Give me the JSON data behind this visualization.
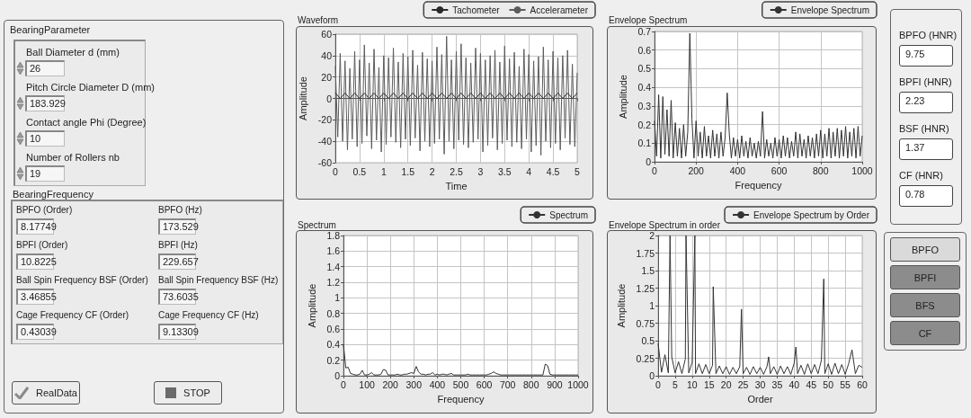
{
  "chart_data": [
    {
      "type": "other",
      "title": "BearingParameter",
      "annotations": [
        "Ball Diameter d (mm)",
        "26",
        "Pitch Circle Diameter D (mm)",
        "183.929",
        "Contact angle Phi (Degree)",
        "10",
        "Number of Rollers nb",
        "19"
      ]
    },
    {
      "type": "other",
      "title": "BearingFrequency",
      "annotations": [
        "BPFO (Order)",
        "8.17749",
        "BPFO (Hz)",
        "173.529",
        "BPFI (Order)",
        "10.8225",
        "BPFI (Hz)",
        "229.657",
        "Ball Spin Frequency BSF (Order)",
        "3.46855",
        "Ball Spin Frequency BSF (Hz)",
        "73.6035",
        "Cage Frequency CF (Order)",
        "0.43039",
        "Cage Frequency CF (Hz)",
        "9.13309"
      ]
    },
    {
      "type": "other",
      "annotations": [
        "RealData",
        "STOP"
      ]
    },
    {
      "type": "line",
      "title": "Waveform",
      "xlabel": "Time",
      "ylabel": "Amplitude",
      "xlim": [
        0,
        5
      ],
      "xticks": [
        0,
        0.5,
        1,
        1.5,
        2,
        2.5,
        3,
        3.5,
        4,
        4.5,
        5
      ],
      "ylim": [
        -60,
        60
      ],
      "yticks": [
        -60,
        -40,
        -20,
        0,
        20,
        40,
        60
      ],
      "grid": true,
      "legend": "top right",
      "series": [
        {
          "name": "Tachometer",
          "color": "#2a2a2a",
          "x": [
            0,
            0.1,
            0.2,
            0.3,
            0.4,
            0.5,
            0.6,
            0.7,
            0.8,
            0.9,
            1,
            1.1,
            1.2,
            1.3,
            1.4,
            1.5,
            1.6,
            1.7,
            1.8,
            1.9,
            2,
            2.1,
            2.2,
            2.3,
            2.4,
            2.5,
            2.6,
            2.7,
            2.8,
            2.9,
            3,
            3.1,
            3.2,
            3.3,
            3.4,
            3.5,
            3.6,
            3.7,
            3.8,
            3.9,
            4,
            4.1,
            4.2,
            4.3,
            4.4,
            4.5,
            4.6,
            4.7,
            4.8,
            4.9,
            5
          ],
          "values": [
            5,
            0,
            5,
            0,
            5,
            0,
            5,
            0,
            5,
            0,
            5,
            0,
            5,
            0,
            5,
            0,
            5,
            0,
            5,
            0,
            5,
            0,
            5,
            0,
            5,
            0,
            5,
            0,
            5,
            0,
            5,
            0,
            5,
            0,
            5,
            0,
            5,
            0,
            5,
            0,
            5,
            0,
            5,
            0,
            5,
            0,
            5,
            0,
            5,
            0,
            5
          ]
        },
        {
          "name": "Accelerameter",
          "color": "#5c5c5c",
          "x": [
            0,
            0.05,
            0.1,
            0.15,
            0.2,
            0.25,
            0.3,
            0.35,
            0.4,
            0.45,
            0.5,
            0.55,
            0.6,
            0.65,
            0.7,
            0.75,
            0.8,
            0.85,
            0.9,
            0.95,
            1,
            1.05,
            1.1,
            1.15,
            1.2,
            1.25,
            1.3,
            1.35,
            1.4,
            1.45,
            1.5,
            1.55,
            1.6,
            1.65,
            1.7,
            1.75,
            1.8,
            1.85,
            1.9,
            1.95,
            2,
            2.05,
            2.1,
            2.15,
            2.2,
            2.25,
            2.3,
            2.35,
            2.4,
            2.45,
            2.5,
            2.55,
            2.6,
            2.65,
            2.7,
            2.75,
            2.8,
            2.85,
            2.9,
            2.95,
            3,
            3.05,
            3.1,
            3.15,
            3.2,
            3.25,
            3.3,
            3.35,
            3.4,
            3.45,
            3.5,
            3.55,
            3.6,
            3.65,
            3.7,
            3.75,
            3.8,
            3.85,
            3.9,
            3.95,
            4,
            4.05,
            4.1,
            4.15,
            4.2,
            4.25,
            4.3,
            4.35,
            4.4,
            4.45,
            4.5,
            4.55,
            4.6,
            4.65,
            4.7,
            4.75,
            4.8,
            4.85,
            4.9,
            4.95,
            5
          ],
          "values": [
            30,
            -36,
            42,
            -40,
            35,
            -48,
            28,
            -38,
            44,
            -45,
            36,
            -42,
            50,
            -35,
            33,
            -47,
            46,
            -39,
            29,
            -50,
            40,
            -43,
            38,
            -36,
            47,
            -41,
            34,
            -46,
            42,
            -38,
            39,
            -44,
            45,
            -37,
            31,
            -49,
            43,
            -40,
            37,
            -45,
            35,
            -42,
            48,
            -38,
            41,
            -52,
            58,
            -40,
            36,
            -47,
            44,
            -39,
            51,
            -43,
            38,
            -46,
            33,
            -41,
            47,
            -38,
            42,
            -50,
            36,
            -44,
            40,
            -37,
            45,
            -48,
            34,
            -42,
            49,
            -39,
            37,
            -45,
            43,
            -41,
            30,
            -47,
            46,
            -38,
            41,
            -50,
            35,
            -44,
            39,
            -53,
            48,
            -40,
            36,
            -46,
            44,
            -42,
            38,
            -48,
            40,
            -37,
            45,
            -43,
            32,
            -45,
            24
          ]
        }
      ]
    },
    {
      "type": "line",
      "title": "Envelope Spectrum",
      "xlabel": "Frequency",
      "ylabel": "Amplitude",
      "xlim": [
        0,
        1000
      ],
      "xticks": [
        0,
        200,
        400,
        600,
        800,
        1000
      ],
      "ylim": [
        0,
        0.7
      ],
      "yticks": [
        0,
        0.1,
        0.2,
        0.3,
        0.4,
        0.5,
        0.6,
        0.7
      ],
      "grid": true,
      "legend": "top right",
      "series": [
        {
          "name": "Envelope Spectrum",
          "color": "#333333",
          "x": [
            0,
            10,
            20,
            30,
            40,
            50,
            60,
            70,
            80,
            90,
            100,
            110,
            120,
            130,
            140,
            150,
            160,
            170,
            180,
            190,
            200,
            210,
            220,
            230,
            240,
            250,
            260,
            270,
            280,
            290,
            300,
            310,
            320,
            330,
            340,
            350,
            360,
            370,
            380,
            390,
            400,
            410,
            420,
            430,
            440,
            450,
            460,
            470,
            480,
            490,
            500,
            510,
            520,
            530,
            540,
            550,
            560,
            570,
            580,
            590,
            600,
            610,
            620,
            630,
            640,
            650,
            660,
            670,
            680,
            690,
            700,
            710,
            720,
            730,
            740,
            750,
            760,
            770,
            780,
            790,
            800,
            810,
            820,
            830,
            840,
            850,
            860,
            870,
            880,
            890,
            900,
            910,
            920,
            930,
            940,
            950,
            960,
            970,
            980,
            990,
            1000
          ],
          "values": [
            0.22,
            0.03,
            0.36,
            0.02,
            0.35,
            0.04,
            0.28,
            0.03,
            0.33,
            0.02,
            0.21,
            0.03,
            0.18,
            0.02,
            0.2,
            0.03,
            0.16,
            0.69,
            0.23,
            0.02,
            0.22,
            0.03,
            0.16,
            0.02,
            0.19,
            0.03,
            0.14,
            0.02,
            0.17,
            0.03,
            0.15,
            0.02,
            0.16,
            0.03,
            0.13,
            0.37,
            0.15,
            0.02,
            0.13,
            0.03,
            0.12,
            0.02,
            0.14,
            0.03,
            0.11,
            0.02,
            0.13,
            0.03,
            0.1,
            0.02,
            0.11,
            0.03,
            0.27,
            0.02,
            0.12,
            0.03,
            0.1,
            0.02,
            0.13,
            0.03,
            0.12,
            0.02,
            0.14,
            0.03,
            0.13,
            0.02,
            0.11,
            0.03,
            0.16,
            0.02,
            0.15,
            0.03,
            0.12,
            0.02,
            0.14,
            0.03,
            0.13,
            0.02,
            0.15,
            0.03,
            0.17,
            0.02,
            0.15,
            0.03,
            0.18,
            0.02,
            0.16,
            0.03,
            0.18,
            0.02,
            0.17,
            0.03,
            0.19,
            0.02,
            0.16,
            0.03,
            0.18,
            0.02,
            0.19,
            0.03,
            0.14
          ]
        }
      ]
    },
    {
      "type": "line",
      "title": "Spectrum",
      "xlabel": "Frequency",
      "ylabel": "Amplitude",
      "xlim": [
        0,
        1000
      ],
      "xticks": [
        0,
        100,
        200,
        300,
        400,
        500,
        600,
        700,
        800,
        900,
        1000
      ],
      "ylim": [
        0,
        1.8
      ],
      "yticks": [
        0,
        0.2,
        0.4,
        0.6,
        0.8,
        1,
        1.2,
        1.4,
        1.6,
        1.8
      ],
      "grid": true,
      "legend": "top right",
      "series": [
        {
          "name": "Spectrum",
          "color": "#333333",
          "x": [
            0,
            10,
            20,
            30,
            40,
            50,
            60,
            70,
            80,
            90,
            100,
            110,
            120,
            130,
            140,
            150,
            160,
            170,
            180,
            190,
            200,
            210,
            220,
            230,
            240,
            250,
            260,
            270,
            280,
            290,
            300,
            310,
            320,
            330,
            340,
            350,
            360,
            370,
            380,
            390,
            400,
            410,
            420,
            430,
            440,
            450,
            460,
            470,
            480,
            490,
            500,
            510,
            520,
            530,
            540,
            550,
            560,
            570,
            580,
            590,
            600,
            610,
            620,
            630,
            640,
            650,
            660,
            670,
            680,
            690,
            700,
            710,
            720,
            730,
            740,
            750,
            760,
            770,
            780,
            790,
            800,
            810,
            820,
            830,
            840,
            850,
            860,
            870,
            880,
            890,
            900,
            910,
            920,
            930,
            940,
            950,
            960,
            970,
            980,
            990,
            1000
          ],
          "values": [
            0.4,
            0.1,
            0.11,
            0.03,
            0.02,
            0.01,
            0.01,
            0.02,
            0.07,
            0.01,
            0.01,
            0.02,
            0.04,
            0.01,
            0.01,
            0.01,
            0.02,
            0.08,
            0.07,
            0.01,
            0.01,
            0.01,
            0.01,
            0.02,
            0.01,
            0.01,
            0.02,
            0.02,
            0.03,
            0.04,
            0.03,
            0.12,
            0.05,
            0.02,
            0.02,
            0.01,
            0.02,
            0.02,
            0.04,
            0.01,
            0.02,
            0.01,
            0.02,
            0.02,
            0.01,
            0.02,
            0.03,
            0.01,
            0.01,
            0.01,
            0.01,
            0.01,
            0.01,
            0.02,
            0.01,
            0.01,
            0.01,
            0.01,
            0.01,
            0.01,
            0.01,
            0.01,
            0.02,
            0.03,
            0.05,
            0.03,
            0.02,
            0.01,
            0.01,
            0.01,
            0.01,
            0.01,
            0.01,
            0.01,
            0.01,
            0.01,
            0.01,
            0.01,
            0.01,
            0.01,
            0.01,
            0.01,
            0.01,
            0.01,
            0.01,
            0.01,
            0.15,
            0.13,
            0.02,
            0.01,
            0.01,
            0.01,
            0.01,
            0.01,
            0.01,
            0.01,
            0.01,
            0.01,
            0.01,
            0.01,
            0.01
          ]
        }
      ]
    },
    {
      "type": "line",
      "title": "Envelope Spectrum in order",
      "xlabel": "Order",
      "ylabel": "Amplitude",
      "xlim": [
        0,
        60
      ],
      "xticks": [
        0,
        5,
        10,
        15,
        20,
        25,
        30,
        35,
        40,
        45,
        50,
        55,
        60
      ],
      "ylim": [
        0,
        2
      ],
      "yticks": [
        0,
        0.25,
        0.5,
        0.75,
        1,
        1.25,
        1.5,
        1.75,
        2
      ],
      "grid": true,
      "legend": "top right",
      "series": [
        {
          "name": "Envelope Spectrum by Order",
          "color": "#333333",
          "x": [
            0,
            1,
            2,
            3,
            3.5,
            4,
            5,
            6,
            7,
            8,
            8.2,
            9,
            10,
            10.8,
            11,
            12,
            13,
            14,
            15,
            16,
            16.2,
            17,
            18,
            19,
            20,
            21,
            22,
            23,
            24,
            24.5,
            25,
            26,
            27,
            28,
            29,
            30,
            31,
            32,
            32.5,
            33,
            34,
            35,
            36,
            37,
            38,
            39,
            40,
            40.5,
            41,
            42,
            43,
            44,
            45,
            46,
            47,
            48,
            48.7,
            49,
            50,
            51,
            52,
            53,
            54,
            55,
            56,
            57,
            58,
            59,
            60
          ],
          "values": [
            0.46,
            0.05,
            0.3,
            0.04,
            2,
            0.27,
            0.04,
            0.2,
            0.03,
            0.24,
            2,
            0.04,
            0.19,
            2,
            0.03,
            0.17,
            0.03,
            0.16,
            0.03,
            0.15,
            1.27,
            0.03,
            0.14,
            0.03,
            0.13,
            0.02,
            0.12,
            0.03,
            0.13,
            0.95,
            0.03,
            0.12,
            0.02,
            0.13,
            0.03,
            0.12,
            0.02,
            0.13,
            0.27,
            0.03,
            0.13,
            0.02,
            0.14,
            0.03,
            0.13,
            0.02,
            0.18,
            0.41,
            0.03,
            0.15,
            0.02,
            0.17,
            0.03,
            0.16,
            0.03,
            0.22,
            1.38,
            0.03,
            0.17,
            0.02,
            0.18,
            0.03,
            0.16,
            0.02,
            0.17,
            0.37,
            0.03,
            0.15,
            0.12
          ]
        }
      ]
    },
    {
      "type": "other",
      "annotations": [
        "BPFO (HNR)",
        "9.75",
        "BPFI (HNR)",
        "2.23",
        "BSF (HNR)",
        "1.37",
        "CF (HNR)",
        "0.78"
      ]
    },
    {
      "type": "other",
      "annotations": [
        "BPFO",
        "BPFI",
        "BFS",
        "CF"
      ]
    }
  ]
}
